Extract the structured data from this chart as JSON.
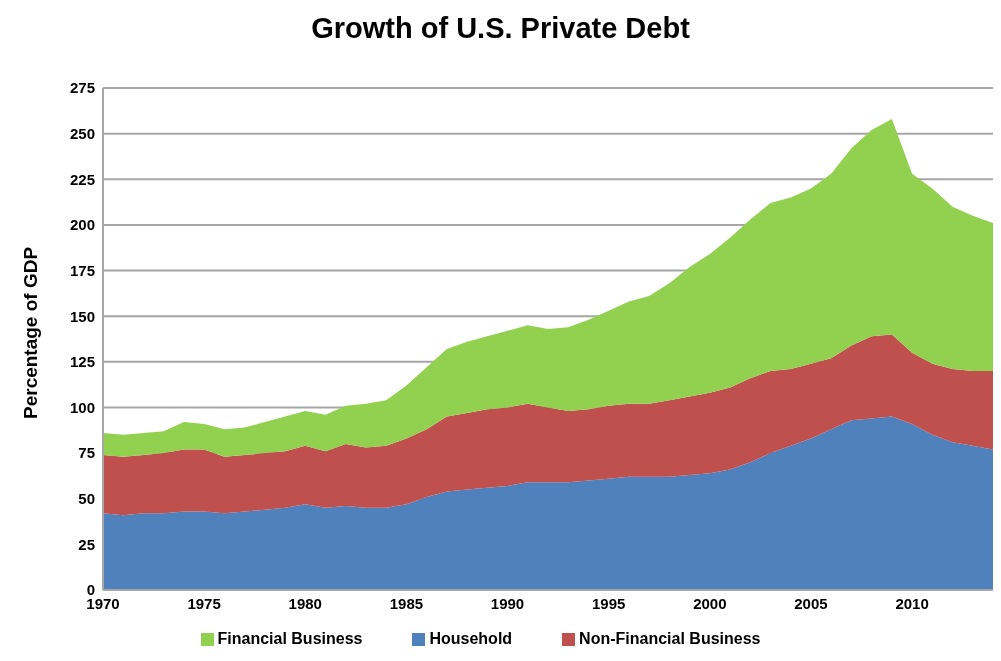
{
  "chart_data": {
    "type": "area",
    "title": "Growth of U.S. Private Debt",
    "ylabel": "Percentage of GDP",
    "stacked": true,
    "x": [
      1970,
      1971,
      1972,
      1973,
      1974,
      1975,
      1976,
      1977,
      1978,
      1979,
      1980,
      1981,
      1982,
      1983,
      1984,
      1985,
      1986,
      1987,
      1988,
      1989,
      1990,
      1991,
      1992,
      1993,
      1994,
      1995,
      1996,
      1997,
      1998,
      1999,
      2000,
      2001,
      2002,
      2003,
      2004,
      2005,
      2006,
      2007,
      2008,
      2009,
      2010,
      2011,
      2012,
      2013,
      2014
    ],
    "series": [
      {
        "name": "Household",
        "color": "#4f81bd",
        "values": [
          42,
          41,
          42,
          42,
          43,
          43,
          42,
          43,
          44,
          45,
          47,
          45,
          46,
          45,
          45,
          47,
          51,
          54,
          55,
          56,
          57,
          59,
          59,
          59,
          60,
          61,
          62,
          62,
          62,
          63,
          64,
          66,
          70,
          75,
          79,
          83,
          88,
          93,
          94,
          95,
          91,
          85,
          81,
          79,
          77
        ]
      },
      {
        "name": "Non-Financial Business",
        "color": "#c0504d",
        "values": [
          32,
          32,
          32,
          33,
          34,
          34,
          31,
          31,
          31,
          31,
          32,
          31,
          34,
          33,
          34,
          36,
          37,
          41,
          42,
          43,
          43,
          43,
          41,
          39,
          39,
          40,
          40,
          40,
          42,
          43,
          44,
          45,
          46,
          45,
          42,
          41,
          39,
          41,
          45,
          45,
          39,
          39,
          40,
          41,
          43
        ]
      },
      {
        "name": "Financial Business",
        "color": "#92d050",
        "values": [
          12,
          12,
          12,
          12,
          15,
          14,
          15,
          15,
          17,
          19,
          19,
          20,
          21,
          24,
          25,
          29,
          34,
          37,
          39,
          40,
          42,
          43,
          43,
          46,
          49,
          52,
          56,
          59,
          64,
          71,
          76,
          82,
          87,
          92,
          94,
          96,
          101,
          108,
          113,
          118,
          98,
          96,
          89,
          85,
          81
        ]
      }
    ],
    "xlim": [
      1970,
      2014
    ],
    "xticks": [
      1970,
      1975,
      1980,
      1985,
      1990,
      1995,
      2000,
      2005,
      2010
    ],
    "ylim": [
      0,
      275
    ],
    "yticks": [
      0,
      25,
      50,
      75,
      100,
      125,
      150,
      175,
      200,
      225,
      250,
      275
    ],
    "grid": "y",
    "legend": "bottom"
  }
}
